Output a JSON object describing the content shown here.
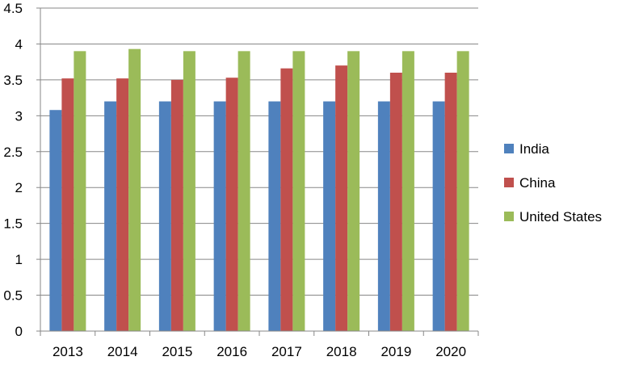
{
  "chart_data": {
    "type": "bar",
    "title": "",
    "xlabel": "",
    "ylabel": "",
    "categories": [
      "2013",
      "2014",
      "2015",
      "2016",
      "2017",
      "2018",
      "2019",
      "2020"
    ],
    "ylim": [
      0,
      4.5
    ],
    "yticks": [
      "0",
      "0.5",
      "1",
      "1.5",
      "2",
      "2.5",
      "3",
      "3.5",
      "4",
      "4.5"
    ],
    "grid": true,
    "legend_position": "right",
    "series": [
      {
        "name": "India",
        "color": "#4f81bd",
        "values": [
          3.08,
          3.2,
          3.2,
          3.2,
          3.2,
          3.2,
          3.2,
          3.2
        ]
      },
      {
        "name": "China",
        "color": "#c0504d",
        "values": [
          3.52,
          3.52,
          3.5,
          3.53,
          3.66,
          3.7,
          3.6,
          3.6
        ]
      },
      {
        "name": "United States",
        "color": "#9bbb59",
        "values": [
          3.9,
          3.93,
          3.9,
          3.9,
          3.9,
          3.9,
          3.9,
          3.9
        ]
      }
    ]
  }
}
